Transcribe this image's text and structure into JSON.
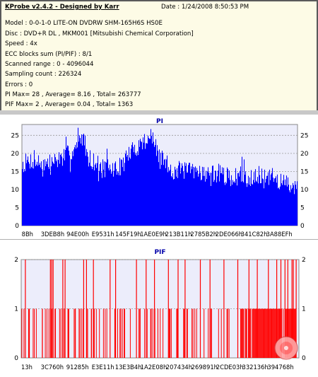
{
  "info": {
    "title": "KProbe v2.4.2 - Designed by Karr",
    "date": "Date : 1/24/2008 8:50:53 PM",
    "model": "Model : 0-0-1-0 LITE-ON DVDRW SHM-165H6S HS0E",
    "disc": "Disc : DVD+R DL , MKM001 [Mitsubishi Chemical Corporation]",
    "speed": "Speed : 4x",
    "ecc": "ECC blocks sum (PI/PIF) : 8/1",
    "range": "Scanned range : 0 - 4096044",
    "sampling": "Sampling count : 226324",
    "errors": "Errors : 0",
    "pi_summary": "PI Max= 28 , Average= 8.16 , Total= 263777",
    "pif_summary": "PIF Max= 2 , Average= 0.04 , Total= 1363"
  },
  "colors": {
    "pi": "#0000ff",
    "pif": "#ff0000",
    "plot_bg": "#ecedfb",
    "title": "#0000aa"
  },
  "chart_data": [
    {
      "type": "bar",
      "title": "PI",
      "ylim": [
        0,
        28
      ],
      "yticks": [
        "0",
        "5",
        "10",
        "15",
        "20",
        "25"
      ],
      "ytick_values": [
        0,
        5,
        10,
        15,
        20,
        25
      ],
      "xtick_labels": [
        "8Bh",
        "3DEB8h",
        "94E00h",
        "E9531h",
        "145F19h",
        "1AE0E9h",
        "213B11h",
        "2785B2h",
        "2DE066h",
        "341C82h",
        "3A88EFh"
      ],
      "grid": true,
      "series": [
        {
          "profile": [
            [
              0,
              17
            ],
            [
              3,
              18
            ],
            [
              6,
              17.5
            ],
            [
              9,
              17
            ],
            [
              12,
              18
            ],
            [
              15,
              19
            ],
            [
              18,
              20.5
            ],
            [
              20,
              22
            ],
            [
              22,
              25
            ],
            [
              24,
              19
            ],
            [
              27,
              17
            ],
            [
              30,
              16
            ],
            [
              33,
              15.5
            ],
            [
              36,
              16.5
            ],
            [
              39,
              20
            ],
            [
              42,
              22
            ],
            [
              45,
              24
            ],
            [
              47,
              25
            ],
            [
              49,
              20
            ],
            [
              52,
              17.5
            ],
            [
              55,
              15
            ],
            [
              58,
              15.5
            ],
            [
              61,
              15
            ],
            [
              64,
              15.5
            ],
            [
              67,
              14
            ],
            [
              70,
              14.5
            ],
            [
              73,
              14
            ],
            [
              76,
              13
            ],
            [
              79,
              14
            ],
            [
              82,
              13
            ],
            [
              85,
              14.5
            ],
            [
              88,
              12.5
            ],
            [
              91,
              13.5
            ],
            [
              94,
              12
            ],
            [
              97,
              11.5
            ],
            [
              100,
              11
            ]
          ],
          "amplitude": 2.6
        }
      ]
    },
    {
      "type": "bar",
      "title": "PIF",
      "ylim": [
        0,
        2
      ],
      "yticks": [
        "0",
        "1",
        "2"
      ],
      "ytick_values": [
        0,
        1,
        2
      ],
      "xtick_labels": [
        "13h",
        "3C760h",
        "91285h",
        "E3E11h",
        "13E3B4h",
        "1A2E08h",
        "207434h",
        "269891h",
        "2CDE03h",
        "332136h",
        "394768h"
      ],
      "grid": true,
      "series": [
        {
          "values_2": [
            1.5,
            10.5,
            11,
            11.5,
            15,
            15.8,
            22.5,
            23.5,
            26,
            32,
            34,
            41.5,
            45,
            48,
            53,
            56.5,
            59,
            64.5,
            68,
            73,
            78,
            82,
            85,
            89,
            92,
            93.5,
            95,
            96,
            97.5,
            98,
            99
          ],
          "dense_one_range": [
            79,
            99
          ],
          "sparse_one_count": 90
        }
      ]
    }
  ]
}
